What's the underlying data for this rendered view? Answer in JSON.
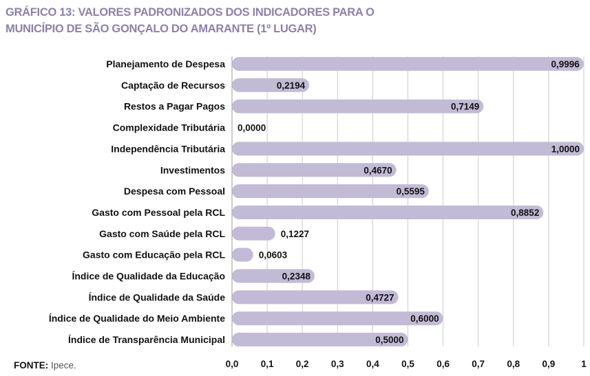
{
  "title_line1": "GRÁFICO 13: VALORES PADRONIZADOS DOS INDICADORES PARA O",
  "title_line2": "MUNICÍPIO DE SÃO GONÇALO DO AMARANTE (1º LUGAR)",
  "source_label": "FONTE:",
  "source_text": "Ipece.",
  "colors": {
    "bar": "#c3bad6",
    "title": "#8e80a8",
    "grid": "#cccccc"
  },
  "chart_data": {
    "type": "bar",
    "orientation": "horizontal",
    "categories": [
      "Planejamento de Despesa",
      "Captação de Recursos",
      "Restos a Pagar Pagos",
      "Complexidade Tributária",
      "Independência Tributária",
      "Investimentos",
      "Despesa com Pessoal",
      "Gasto com Pessoal pela RCL",
      "Gasto com Saúde pela RCL",
      "Gasto com Educação pela RCL",
      "Índice de Qualidade da Educação",
      "Índice de Qualidade da Saúde",
      "Índice de Qualidade do Meio Ambiente",
      "Índice de Transparência Municipal"
    ],
    "values": [
      0.9996,
      0.2194,
      0.7149,
      0.0,
      1.0,
      0.467,
      0.5595,
      0.8852,
      0.1227,
      0.0603,
      0.2348,
      0.4727,
      0.6,
      0.5
    ],
    "value_labels": [
      "0,9996",
      "0,2194",
      "0,7149",
      "0,0000",
      "1,0000",
      "0,4670",
      "0,5595",
      "0,8852",
      "0,1227",
      "0,0603",
      "0,2348",
      "0,4727",
      "0,6000",
      "0,5000"
    ],
    "xlim": [
      0,
      1
    ],
    "ticks": [
      "0,0",
      "0,1",
      "0,2",
      "0,3",
      "0,4",
      "0,5",
      "0,6",
      "0,7",
      "0,8",
      "0,9",
      "1"
    ],
    "grid": true
  }
}
